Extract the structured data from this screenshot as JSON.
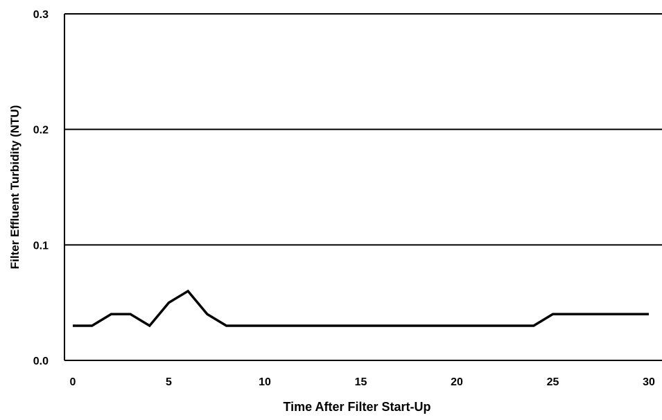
{
  "chart_data": {
    "type": "line",
    "title": "",
    "xlabel": "Time After Filter Start-Up",
    "ylabel": "Filter Effluent Turbidity (NTU)",
    "xlim": [
      0,
      30
    ],
    "ylim": [
      0.0,
      0.3
    ],
    "x_ticks": [
      "0",
      "5",
      "10",
      "15",
      "20",
      "25",
      "30"
    ],
    "y_ticks": [
      "0.0",
      "0.1",
      "0.2",
      "0.3"
    ],
    "grid": "horizontal",
    "series": [
      {
        "x": [
          0,
          1,
          2,
          3,
          4,
          5,
          6,
          7,
          8,
          9,
          10,
          11,
          12,
          13,
          14,
          15,
          16,
          17,
          18,
          19,
          20,
          21,
          22,
          23,
          24,
          25,
          26,
          27,
          28,
          29,
          30
        ],
        "values": [
          0.03,
          0.03,
          0.04,
          0.04,
          0.03,
          0.05,
          0.06,
          0.04,
          0.03,
          0.03,
          0.03,
          0.03,
          0.03,
          0.03,
          0.03,
          0.03,
          0.03,
          0.03,
          0.03,
          0.03,
          0.03,
          0.03,
          0.03,
          0.03,
          0.03,
          0.04,
          0.04,
          0.04,
          0.04,
          0.04,
          0.04
        ],
        "color": "#000000"
      }
    ]
  }
}
